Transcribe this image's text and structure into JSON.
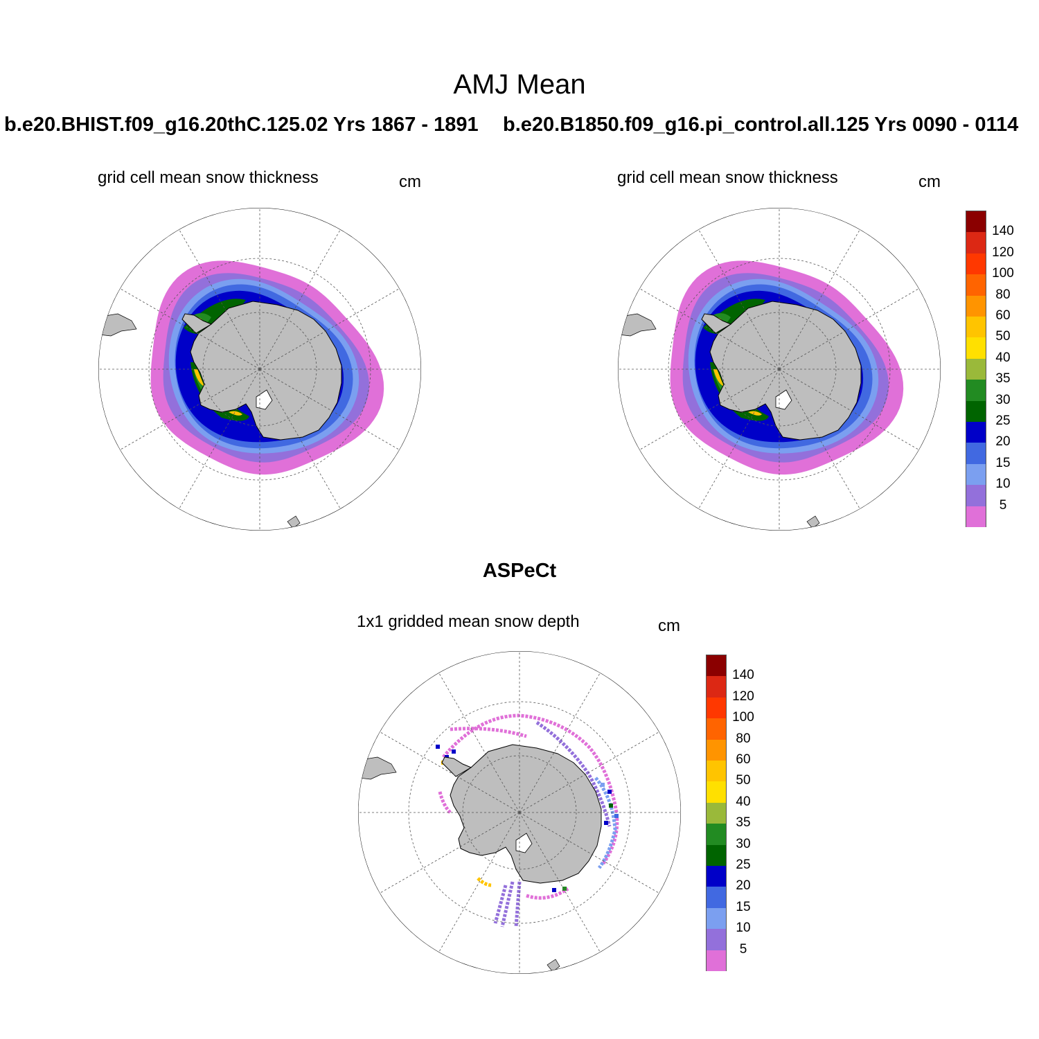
{
  "title": "AMJ Mean",
  "panels": [
    {
      "case_label": "b.e20.BHIST.f09_g16.20thC.125.02  Yrs 1867 - 1891",
      "subtitle": "grid cell mean snow thickness",
      "units": "cm"
    },
    {
      "case_label": "b.e20.B1850.f09_g16.pi_control.all.125  Yrs 0090 - 0114",
      "subtitle": "grid cell mean snow thickness",
      "units": "cm"
    }
  ],
  "observations": {
    "title": "ASPeCt",
    "subtitle": "1x1 gridded mean snow depth",
    "units": "cm"
  },
  "colorbar": {
    "labels": [
      "5",
      "10",
      "15",
      "20",
      "25",
      "30",
      "35",
      "40",
      "50",
      "60",
      "80",
      "100",
      "120",
      "140"
    ],
    "colors": [
      "#e070d8",
      "#9370db",
      "#7b9ff0",
      "#4169e1",
      "#0000c8",
      "#006400",
      "#228b22",
      "#9ab93a",
      "#ffe000",
      "#ffc400",
      "#ff9400",
      "#ff6400",
      "#ff3800",
      "#dc2814",
      "#8b0000"
    ]
  },
  "map_colors": {
    "land": "#bebebe",
    "coast": "#000000",
    "grid": "#555555"
  }
}
